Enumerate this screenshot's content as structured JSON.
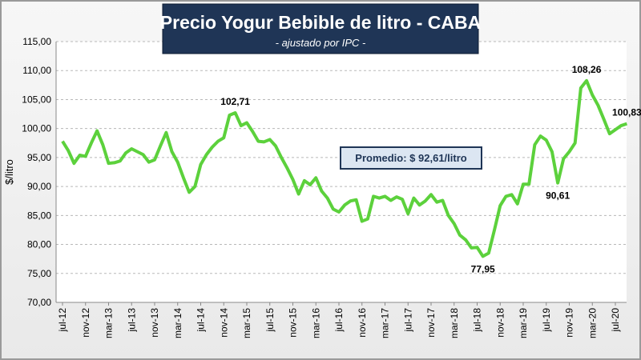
{
  "chart_data": {
    "type": "line",
    "title": "Precio Yogur Bebible de litro - CABA",
    "subtitle": "- ajustado por IPC -",
    "y_label": "$/litro",
    "annotation": "Promedio: $ 92,61/litro",
    "categories": [
      "jul-12",
      null,
      null,
      null,
      "nov-12",
      null,
      null,
      null,
      "mar-13",
      null,
      null,
      null,
      "jul-13",
      null,
      null,
      null,
      "nov-13",
      null,
      null,
      null,
      "mar-14",
      null,
      null,
      null,
      "jul-14",
      null,
      null,
      null,
      "nov-14",
      null,
      null,
      null,
      "mar-15",
      null,
      null,
      null,
      "jul-15",
      null,
      null,
      null,
      "nov-15",
      null,
      null,
      null,
      "mar-16",
      null,
      null,
      null,
      "jul-16",
      null,
      null,
      null,
      "nov-16",
      null,
      null,
      null,
      "mar-17",
      null,
      null,
      null,
      "jul-17",
      null,
      null,
      null,
      "nov-17",
      null,
      null,
      null,
      "mar-18",
      null,
      null,
      null,
      "jul-18",
      null,
      null,
      null,
      "nov-18",
      null,
      null,
      null,
      "mar-19",
      null,
      null,
      null,
      "jul-19",
      null,
      null,
      null,
      "nov-19",
      null,
      null,
      null,
      "mar-20",
      null,
      null,
      null,
      "jul-20",
      null,
      null
    ],
    "series": [
      {
        "name": "Precio",
        "color": "#5cd13c",
        "values": [
          97.8,
          96.2,
          94,
          95.4,
          95.2,
          97.5,
          99.6,
          97.2,
          94,
          94.1,
          94.4,
          95.8,
          96.5,
          96,
          95.5,
          94.2,
          94.6,
          97,
          99.3,
          96,
          94.2,
          91.5,
          89,
          90,
          93.8,
          95.5,
          96.8,
          97.8,
          98.4,
          102.3,
          102.71,
          100.5,
          101,
          99.5,
          97.8,
          97.7,
          98.1,
          97,
          95,
          93.2,
          91.2,
          88.7,
          91,
          90.3,
          91.5,
          89.2,
          88,
          86.1,
          85.6,
          86.8,
          87.5,
          87.7,
          84,
          84.4,
          88.3,
          88,
          88.3,
          87.6,
          88.2,
          87.8,
          85.3,
          88,
          86.8,
          87.5,
          88.6,
          87.3,
          87.6,
          85,
          83.6,
          81.6,
          80.8,
          79.4,
          79.5,
          77.95,
          78.5,
          82.5,
          86.7,
          88.3,
          88.6,
          87,
          90.4,
          90.4,
          97.2,
          98.7,
          98,
          96,
          90.61,
          94.8,
          96,
          97.5,
          107,
          108.26,
          105.8,
          104,
          101.6,
          99.1,
          99.8,
          100.5,
          100.83
        ],
        "value_labels": [
          null,
          null,
          null,
          null,
          null,
          null,
          null,
          null,
          null,
          null,
          null,
          null,
          null,
          null,
          null,
          null,
          null,
          null,
          null,
          null,
          null,
          null,
          null,
          null,
          null,
          null,
          null,
          null,
          null,
          null,
          "102,71",
          null,
          null,
          null,
          null,
          null,
          null,
          null,
          null,
          null,
          null,
          null,
          null,
          null,
          null,
          null,
          null,
          null,
          null,
          null,
          null,
          null,
          null,
          null,
          null,
          null,
          null,
          null,
          null,
          null,
          null,
          null,
          null,
          null,
          null,
          null,
          null,
          null,
          null,
          null,
          null,
          null,
          null,
          "77,95",
          null,
          null,
          null,
          null,
          null,
          null,
          null,
          null,
          null,
          null,
          null,
          null,
          "90,61",
          null,
          null,
          null,
          null,
          "108,26",
          null,
          null,
          null,
          null,
          null,
          null,
          "100,83"
        ]
      }
    ],
    "ylim": [
      70,
      115
    ],
    "yticks": [
      {
        "value": 70,
        "label": "70,00"
      },
      {
        "value": 75,
        "label": "75,00"
      },
      {
        "value": 80,
        "label": "80,00"
      },
      {
        "value": 85,
        "label": "85,00"
      },
      {
        "value": 90,
        "label": "90,00"
      },
      {
        "value": 95,
        "label": "95,00"
      },
      {
        "value": 100,
        "label": "100,00"
      },
      {
        "value": 105,
        "label": "105,00"
      },
      {
        "value": 110,
        "label": "110,00"
      },
      {
        "value": 115,
        "label": "115,00"
      }
    ],
    "grid": true
  }
}
